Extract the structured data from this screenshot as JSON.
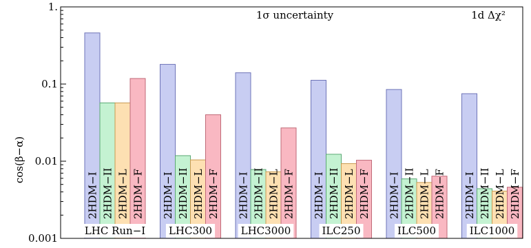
{
  "chart_data": {
    "type": "bar",
    "scale": "log",
    "ylim": [
      0.001,
      1
    ],
    "ylabel": "cos(β−α)",
    "yticks": [
      {
        "value": 1,
        "label": "1."
      },
      {
        "value": 0.1,
        "label": "0.1"
      },
      {
        "value": 0.01,
        "label": "0.01"
      },
      {
        "value": 0.001,
        "label": "0.001"
      }
    ],
    "annotations": {
      "uncertainty": "1σ uncertainty",
      "statistic": "1d Δχ²"
    },
    "grid": false,
    "legend": "none (series names printed vertically inside each bar)",
    "categories": [
      "LHC Run−I",
      "LHC300",
      "LHC3000",
      "ILC250",
      "ILC500",
      "ILC1000"
    ],
    "series": [
      {
        "name": "2HDM−I",
        "color": "#c8cdf2",
        "stroke": "#6e74b8",
        "values": [
          0.46,
          0.18,
          0.14,
          0.112,
          0.085,
          0.075
        ]
      },
      {
        "name": "2HDM−II",
        "color": "#c4f2d2",
        "stroke": "#5aa873",
        "values": [
          0.057,
          0.0118,
          0.0078,
          0.0123,
          0.0059,
          0.0044
        ]
      },
      {
        "name": "2HDM−L",
        "color": "#fde0b2",
        "stroke": "#c89a50",
        "values": [
          0.057,
          0.0104,
          0.0073,
          0.0093,
          0.0053,
          0.0041
        ]
      },
      {
        "name": "2HDM−F",
        "color": "#f9b8c2",
        "stroke": "#c06a78",
        "values": [
          0.118,
          0.04,
          0.027,
          0.0103,
          0.0064,
          0.0046
        ]
      }
    ]
  }
}
